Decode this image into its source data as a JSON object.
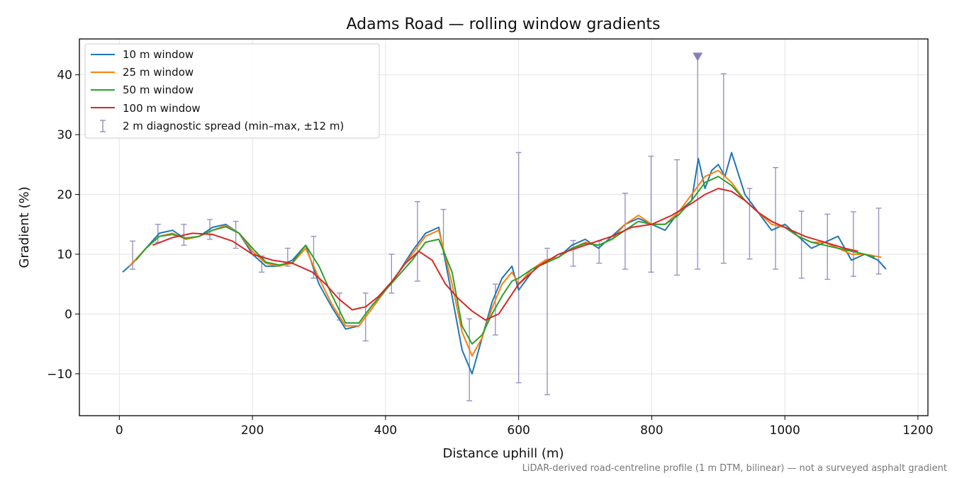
{
  "chart_data": {
    "type": "line",
    "title": "Adams Road — rolling window gradients",
    "xlabel": "Distance uphill (m)",
    "ylabel": "Gradient (%)",
    "xlim": [
      -60,
      1215
    ],
    "ylim": [
      -17,
      46
    ],
    "xticks": [
      0,
      200,
      400,
      600,
      800,
      1000,
      1200
    ],
    "yticks": [
      -10,
      0,
      10,
      20,
      30,
      40
    ],
    "ytick_labels": [
      "−10",
      "0",
      "10",
      "20",
      "30",
      "40"
    ],
    "grid": true,
    "legend_position": "top-left",
    "footnote": "LiDAR-derived road-centreline profile (1 m DTM, bilinear) — not a surveyed asphalt gradient",
    "series": [
      {
        "name": "10 m window",
        "color": "#1f77b4",
        "x": [
          5,
          20,
          40,
          60,
          80,
          100,
          120,
          140,
          160,
          180,
          200,
          220,
          240,
          260,
          280,
          300,
          320,
          340,
          360,
          380,
          400,
          420,
          440,
          460,
          480,
          500,
          515,
          530,
          545,
          560,
          575,
          590,
          600,
          620,
          640,
          660,
          680,
          700,
          720,
          740,
          760,
          780,
          800,
          820,
          840,
          860,
          870,
          880,
          890,
          900,
          910,
          920,
          940,
          960,
          980,
          1000,
          1020,
          1040,
          1060,
          1080,
          1100,
          1120,
          1140,
          1152
        ],
        "y": [
          7,
          8.5,
          11,
          13.5,
          14,
          12.5,
          13,
          14.5,
          15,
          13.5,
          10,
          8,
          8,
          9,
          11.5,
          5,
          1,
          -2.5,
          -2,
          1,
          4,
          7,
          10.5,
          13.5,
          14.5,
          3,
          -6,
          -10,
          -4,
          2,
          6,
          8,
          4,
          7,
          9,
          9.5,
          11.5,
          12.5,
          11,
          13,
          15,
          16,
          15,
          14,
          17,
          19,
          26,
          21,
          24,
          25,
          23,
          27,
          20,
          17,
          14,
          15,
          13,
          11,
          12,
          13,
          9,
          10,
          9,
          7.5
        ]
      },
      {
        "name": "25 m window",
        "color": "#ff7f0e",
        "x": [
          15,
          40,
          60,
          80,
          100,
          120,
          140,
          160,
          180,
          200,
          220,
          240,
          260,
          280,
          300,
          320,
          340,
          360,
          380,
          400,
          420,
          440,
          460,
          480,
          500,
          515,
          530,
          545,
          560,
          575,
          590,
          600,
          620,
          640,
          660,
          680,
          700,
          720,
          740,
          760,
          780,
          800,
          820,
          840,
          860,
          880,
          900,
          920,
          940,
          960,
          980,
          1000,
          1020,
          1040,
          1060,
          1080,
          1100,
          1120,
          1145
        ],
        "y": [
          8,
          11,
          13,
          13.5,
          12.5,
          13,
          14,
          14.8,
          13.5,
          10.5,
          8.5,
          8,
          8.5,
          11,
          6,
          1.5,
          -2,
          -2,
          1,
          4,
          7,
          10,
          13,
          14,
          5,
          -3,
          -7,
          -4,
          1,
          5,
          7,
          5,
          7.5,
          9,
          9.5,
          11,
          12,
          11.5,
          12.5,
          15,
          16.5,
          15,
          15,
          17,
          20,
          23,
          24,
          22,
          19,
          17,
          15,
          14.5,
          13,
          12,
          12,
          11,
          10,
          10,
          9.5
        ]
      },
      {
        "name": "50 m window",
        "color": "#2ca02c",
        "x": [
          25,
          40,
          60,
          80,
          100,
          120,
          140,
          160,
          180,
          200,
          220,
          240,
          260,
          280,
          300,
          320,
          340,
          360,
          380,
          400,
          420,
          440,
          460,
          480,
          500,
          515,
          530,
          545,
          560,
          575,
          590,
          600,
          620,
          640,
          660,
          680,
          700,
          720,
          740,
          760,
          780,
          800,
          820,
          840,
          860,
          880,
          900,
          920,
          940,
          960,
          980,
          1000,
          1020,
          1040,
          1060,
          1080,
          1100,
          1120,
          1135
        ],
        "y": [
          9,
          11,
          13,
          13.3,
          12.7,
          13,
          14,
          14.6,
          13.5,
          11,
          8.7,
          8.2,
          8.6,
          11.5,
          8,
          3,
          -1.5,
          -1.5,
          1.5,
          4,
          6.5,
          9,
          12,
          12.5,
          7,
          -2,
          -5,
          -3.5,
          0,
          3,
          5.5,
          6,
          7.5,
          8.5,
          9.5,
          11,
          11.8,
          11.5,
          12.5,
          14,
          15.5,
          15,
          15,
          16.5,
          19,
          22,
          23,
          21.5,
          19,
          17,
          15.5,
          14.5,
          13,
          12,
          11.5,
          11,
          10.5,
          10,
          9.5
        ]
      },
      {
        "name": "100 m window",
        "color": "#d62728",
        "x": [
          50,
          80,
          110,
          140,
          170,
          200,
          230,
          260,
          290,
          310,
          330,
          350,
          370,
          390,
          410,
          430,
          450,
          470,
          490,
          510,
          530,
          550,
          570,
          600,
          630,
          660,
          700,
          740,
          770,
          800,
          830,
          860,
          880,
          900,
          920,
          940,
          960,
          980,
          1000,
          1030,
          1060,
          1090,
          1110
        ],
        "y": [
          11.5,
          12.8,
          13.5,
          13.3,
          12.2,
          10,
          9,
          8.5,
          7,
          5,
          2.5,
          0.7,
          1.2,
          3,
          5.5,
          8.5,
          10.5,
          9,
          5,
          2.5,
          0.5,
          -1,
          0,
          5,
          8,
          10,
          11.5,
          13,
          14.5,
          15,
          16.5,
          18.5,
          20,
          21,
          20.5,
          19,
          17,
          15.5,
          14.5,
          13,
          12,
          11,
          10.5
        ]
      }
    ],
    "diagnostic_spread": {
      "name": "2 m diagnostic spread (min–max, ±12 m)",
      "color": "#9a92bf",
      "x": [
        20,
        58,
        97,
        136,
        175,
        214,
        253,
        292,
        331,
        370,
        409,
        448,
        487,
        526,
        565,
        600,
        643,
        682,
        721,
        760,
        799,
        838,
        869,
        908,
        947,
        986,
        1025,
        1064,
        1103,
        1141
      ],
      "min": [
        7.5,
        12,
        11.5,
        12.5,
        11,
        7,
        8,
        6,
        -1,
        -4.5,
        3.5,
        5.5,
        10,
        -14.5,
        -3.5,
        -11.5,
        -13.5,
        8,
        8.5,
        7.5,
        7,
        6.5,
        7.5,
        8.5,
        9.2,
        7.5,
        6,
        5.8,
        6.3,
        6.7
      ],
      "max": [
        12.2,
        15,
        15,
        15.8,
        15.5,
        9.7,
        11,
        13,
        3.5,
        3.5,
        10,
        18.8,
        17.5,
        -0.8,
        5,
        27,
        11,
        12.3,
        12.2,
        20.2,
        26.4,
        25.8,
        43.2,
        40.2,
        21,
        24.5,
        17.2,
        16.7,
        17.1,
        17.7
      ],
      "marker_x": 869,
      "marker_y": 43
    }
  }
}
